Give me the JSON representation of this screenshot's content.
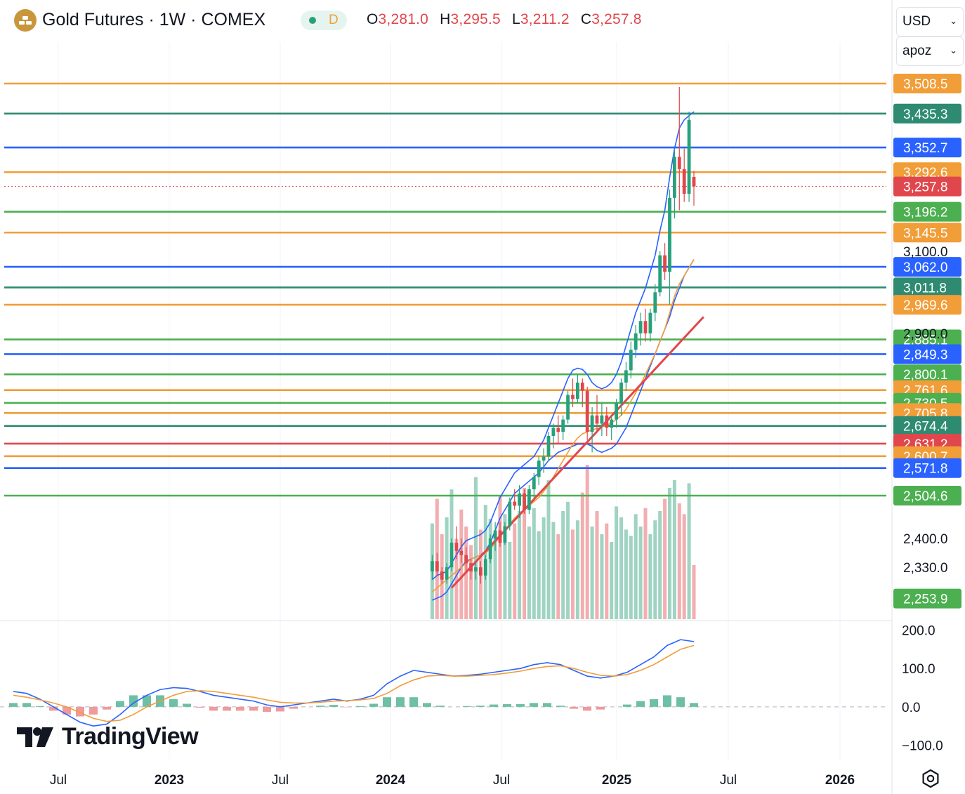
{
  "header": {
    "title": "Gold Futures · 1W · COMEX",
    "status_letter": "D",
    "ohlc": [
      {
        "key": "O",
        "value": "3,281.0"
      },
      {
        "key": "H",
        "value": "3,295.5"
      },
      {
        "key": "L",
        "value": "3,211.2"
      },
      {
        "key": "C",
        "value": "3,257.8"
      }
    ],
    "currency": "USD",
    "unit": "apoz",
    "brand": "TradingView"
  },
  "colors": {
    "up": "#26a17b",
    "down": "#e0474c",
    "orange": "#f19d38",
    "green": "#4caf50",
    "teal": "#2e8b72",
    "blue": "#2962ff",
    "red": "#e0474c",
    "grid": "#f0f3fa",
    "axis_text": "#131722"
  },
  "icons": {
    "logo": "gold-bars-icon",
    "settings": "gear-icon"
  },
  "chart_data": [
    {
      "type": "candlestick",
      "title": "Gold Futures · 1W · COMEX",
      "x_ticks": [
        "Jul",
        "2023",
        "Jul",
        "2024",
        "Jul",
        "2025",
        "Jul",
        "2026"
      ],
      "y_axis_labels": [
        "3,100.0",
        "2,900.0",
        "2,400.0",
        "2,330.0"
      ],
      "price_levels": [
        {
          "value": 3508.5,
          "label": "3,508.5",
          "color": "orange",
          "line": true
        },
        {
          "value": 3435.3,
          "label": "3,435.3",
          "color": "teal",
          "line": true
        },
        {
          "value": 3352.7,
          "label": "3,352.7",
          "color": "blue",
          "line": true
        },
        {
          "value": 3292.6,
          "label": "3,292.6",
          "color": "orange",
          "line": true
        },
        {
          "value": 3257.8,
          "label": "3,257.8",
          "color": "red",
          "line": false
        },
        {
          "value": 3196.2,
          "label": "3,196.2",
          "color": "green",
          "line": true
        },
        {
          "value": 3145.5,
          "label": "3,145.5",
          "color": "orange",
          "line": true
        },
        {
          "value": 3062.0,
          "label": "3,062.0",
          "color": "blue",
          "line": true
        },
        {
          "value": 3011.8,
          "label": "3,011.8",
          "color": "teal",
          "line": true
        },
        {
          "value": 2969.6,
          "label": "2,969.6",
          "color": "orange",
          "line": true
        },
        {
          "value": 2885.1,
          "label": "2,885.1",
          "color": "green",
          "line": true
        },
        {
          "value": 2849.3,
          "label": "2,849.3",
          "color": "blue",
          "line": true
        },
        {
          "value": 2800.1,
          "label": "2,800.1",
          "color": "green",
          "line": true
        },
        {
          "value": 2761.6,
          "label": "2,761.6",
          "color": "orange",
          "line": true
        },
        {
          "value": 2730.5,
          "label": "2,730.5",
          "color": "green",
          "line": true
        },
        {
          "value": 2705.8,
          "label": "2,705.8",
          "color": "orange",
          "line": true
        },
        {
          "value": 2674.4,
          "label": "2,674.4",
          "color": "teal",
          "line": true
        },
        {
          "value": 2631.2,
          "label": "2,631.2",
          "color": "red",
          "line": true
        },
        {
          "value": 2600.7,
          "label": "2,600.7",
          "color": "orange",
          "line": true
        },
        {
          "value": 2571.8,
          "label": "2,571.8",
          "color": "blue",
          "line": true
        },
        {
          "value": 2504.6,
          "label": "2,504.6",
          "color": "green",
          "line": true
        },
        {
          "value": 2253.9,
          "label": "2,253.9",
          "color": "green",
          "line": false
        }
      ],
      "candles": [
        [
          2320,
          2360,
          2300,
          2345
        ],
        [
          2345,
          2365,
          2310,
          2320
        ],
        [
          2320,
          2330,
          2290,
          2300
        ],
        [
          2300,
          2340,
          2290,
          2330
        ],
        [
          2330,
          2400,
          2320,
          2390
        ],
        [
          2390,
          2430,
          2350,
          2370
        ],
        [
          2370,
          2400,
          2340,
          2360
        ],
        [
          2360,
          2380,
          2320,
          2340
        ],
        [
          2340,
          2350,
          2300,
          2320
        ],
        [
          2320,
          2340,
          2300,
          2330
        ],
        [
          2330,
          2345,
          2290,
          2310
        ],
        [
          2310,
          2360,
          2300,
          2350
        ],
        [
          2350,
          2410,
          2340,
          2400
        ],
        [
          2400,
          2440,
          2370,
          2420
        ],
        [
          2420,
          2440,
          2380,
          2390
        ],
        [
          2390,
          2440,
          2385,
          2430
        ],
        [
          2430,
          2500,
          2420,
          2490
        ],
        [
          2490,
          2520,
          2470,
          2480
        ],
        [
          2480,
          2530,
          2450,
          2510
        ],
        [
          2510,
          2520,
          2460,
          2470
        ],
        [
          2470,
          2530,
          2460,
          2520
        ],
        [
          2520,
          2560,
          2500,
          2550
        ],
        [
          2550,
          2600,
          2530,
          2590
        ],
        [
          2590,
          2620,
          2560,
          2600
        ],
        [
          2600,
          2660,
          2590,
          2650
        ],
        [
          2650,
          2680,
          2620,
          2670
        ],
        [
          2670,
          2700,
          2630,
          2660
        ],
        [
          2660,
          2700,
          2640,
          2690
        ],
        [
          2690,
          2760,
          2680,
          2750
        ],
        [
          2750,
          2790,
          2720,
          2740
        ],
        [
          2740,
          2800,
          2730,
          2780
        ],
        [
          2780,
          2790,
          2720,
          2760
        ],
        [
          2760,
          2770,
          2640,
          2660
        ],
        [
          2660,
          2720,
          2610,
          2700
        ],
        [
          2700,
          2750,
          2660,
          2680
        ],
        [
          2680,
          2730,
          2650,
          2700
        ],
        [
          2700,
          2720,
          2650,
          2670
        ],
        [
          2670,
          2700,
          2640,
          2690
        ],
        [
          2690,
          2740,
          2670,
          2730
        ],
        [
          2730,
          2790,
          2700,
          2780
        ],
        [
          2780,
          2830,
          2760,
          2810
        ],
        [
          2810,
          2880,
          2790,
          2860
        ],
        [
          2860,
          2920,
          2840,
          2900
        ],
        [
          2900,
          2950,
          2870,
          2930
        ],
        [
          2930,
          2960,
          2880,
          2900
        ],
        [
          2900,
          2960,
          2880,
          2950
        ],
        [
          2950,
          3020,
          2930,
          3000
        ],
        [
          3000,
          3100,
          2990,
          3090
        ],
        [
          3090,
          3120,
          3030,
          3050
        ],
        [
          3050,
          3250,
          2970,
          3230
        ],
        [
          3230,
          3350,
          3180,
          3330
        ],
        [
          3330,
          3500,
          3200,
          3300
        ],
        [
          3300,
          3350,
          3220,
          3240
        ],
        [
          3240,
          3440,
          3220,
          3420
        ],
        [
          3281.0,
          3295.5,
          3211.2,
          3257.8
        ]
      ],
      "series": [
        {
          "name": "",
          "type": "line",
          "color": "blue",
          "values": [
            2300,
            2310,
            2315,
            2320,
            2340,
            2360,
            2380,
            2395,
            2400,
            2405,
            2410,
            2420,
            2440,
            2470,
            2500,
            2520,
            2540,
            2560,
            2570,
            2580,
            2590,
            2600,
            2620,
            2640,
            2670,
            2700,
            2730,
            2760,
            2790,
            2810,
            2815,
            2812,
            2800,
            2780,
            2770,
            2765,
            2770,
            2780,
            2800,
            2830,
            2870,
            2910,
            2950,
            2980,
            3010,
            3050,
            3090,
            3150,
            3200,
            3280,
            3350,
            3400,
            3420,
            3430,
            3440
          ]
        },
        {
          "name": "",
          "type": "line",
          "color": "blue",
          "values": [
            2250,
            2255,
            2260,
            2270,
            2290,
            2310,
            2330,
            2345,
            2350,
            2355,
            2360,
            2370,
            2390,
            2420,
            2450,
            2470,
            2490,
            2510,
            2520,
            2530,
            2540,
            2550,
            2560,
            2575,
            2590,
            2600,
            2610,
            2615,
            2620,
            2625,
            2630,
            2630,
            2630,
            2625,
            2615,
            2610,
            2615,
            2620,
            2630,
            2650,
            2670,
            2700,
            2730,
            2760,
            2790,
            2820,
            2850,
            2880,
            2910,
            2940,
            2980,
            3010,
            3040,
            3060,
            3080
          ]
        },
        {
          "name": "",
          "type": "line",
          "color": "orange",
          "values": [
            2270,
            2280,
            2290,
            2300,
            2310,
            2320,
            2330,
            2340,
            2350,
            2355,
            2360,
            2365,
            2375,
            2390,
            2405,
            2420,
            2435,
            2450,
            2460,
            2470,
            2480,
            2490,
            2500,
            2515,
            2530,
            2550,
            2570,
            2590,
            2610,
            2630,
            2645,
            2655,
            2660,
            2665,
            2668,
            2672,
            2676,
            2682,
            2690,
            2700,
            2715,
            2735,
            2755,
            2775,
            2800,
            2825,
            2850,
            2880,
            2910,
            2950,
            2990,
            3020,
            3040,
            3060,
            3080
          ]
        }
      ],
      "trendline": {
        "from": [
          4,
          2280
        ],
        "to": [
          56,
          2940
        ],
        "color": "red"
      },
      "volume": [
        0.62,
        0.78,
        0.55,
        0.66,
        0.84,
        0.52,
        0.71,
        0.6,
        0.48,
        0.92,
        0.58,
        0.74,
        0.65,
        0.55,
        0.8,
        0.68,
        0.5,
        0.62,
        0.7,
        0.85,
        0.6,
        0.72,
        0.57,
        0.66,
        0.9,
        0.63,
        0.55,
        0.7,
        0.76,
        0.58,
        0.64,
        0.82,
        1.0,
        0.6,
        0.7,
        0.55,
        0.62,
        0.5,
        0.73,
        0.66,
        0.58,
        0.54,
        0.68,
        0.6,
        0.72,
        0.55,
        0.64,
        0.7,
        0.78,
        0.85,
        0.9,
        0.75,
        0.68,
        0.88,
        0.35
      ]
    },
    {
      "type": "line",
      "y_axis_labels": [
        "200.0",
        "100.0",
        "0.0",
        "−100.0"
      ],
      "ylim": [
        -110,
        210
      ],
      "series": [
        {
          "name": "",
          "color": "blue",
          "values": [
            40,
            35,
            20,
            0,
            -20,
            -40,
            -50,
            -45,
            -20,
            10,
            30,
            45,
            50,
            48,
            40,
            30,
            25,
            20,
            15,
            5,
            0,
            5,
            10,
            15,
            20,
            15,
            20,
            30,
            60,
            80,
            95,
            90,
            85,
            80,
            82,
            85,
            90,
            95,
            100,
            110,
            115,
            110,
            95,
            80,
            75,
            80,
            90,
            110,
            130,
            160,
            175,
            170
          ]
        },
        {
          "name": "",
          "color": "orange",
          "values": [
            30,
            25,
            18,
            10,
            0,
            -15,
            -30,
            -38,
            -35,
            -20,
            0,
            15,
            30,
            40,
            42,
            40,
            35,
            30,
            25,
            18,
            12,
            10,
            10,
            12,
            15,
            16,
            18,
            22,
            35,
            55,
            70,
            80,
            82,
            80,
            80,
            82,
            84,
            88,
            93,
            100,
            105,
            107,
            100,
            90,
            82,
            80,
            84,
            95,
            110,
            130,
            150,
            160
          ]
        },
        {
          "name": "",
          "type": "bar",
          "values": [
            10,
            10,
            2,
            -10,
            -20,
            -25,
            -20,
            -7,
            15,
            30,
            30,
            30,
            20,
            8,
            -2,
            -10,
            -10,
            -10,
            -10,
            -13,
            -12,
            -5,
            0,
            3,
            5,
            -1,
            2,
            8,
            25,
            25,
            25,
            10,
            3,
            0,
            2,
            3,
            6,
            7,
            7,
            10,
            10,
            3,
            -5,
            -10,
            -7,
            0,
            6,
            15,
            20,
            30,
            25,
            10
          ]
        }
      ]
    }
  ]
}
